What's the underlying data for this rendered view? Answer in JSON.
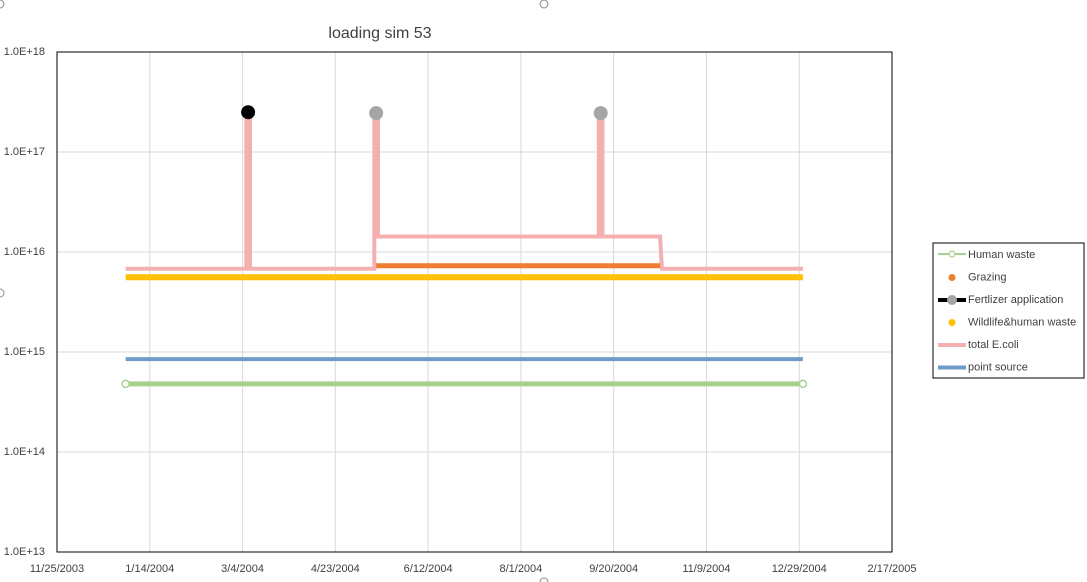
{
  "chart_data": {
    "type": "line",
    "title": "loading sim 53",
    "y_scale": "log",
    "grid": true,
    "legend_position": "right",
    "ylim": [
      "1.0E+13",
      "1.0E+18"
    ],
    "y_ticks": [
      {
        "value": 10000000000000.0,
        "label": "1.0E+13"
      },
      {
        "value": 100000000000000.0,
        "label": "1.0E+14"
      },
      {
        "value": 1000000000000000.0,
        "label": "1.0E+15"
      },
      {
        "value": 1e+16,
        "label": "1.0E+16"
      },
      {
        "value": 1e+17,
        "label": "1.0E+17"
      },
      {
        "value": 1e+18,
        "label": "1.0E+18"
      }
    ],
    "xlim": [
      "2003-11-25",
      "2005-02-17"
    ],
    "x_ticks": [
      {
        "date": "2003-11-25",
        "label": "11/25/2003"
      },
      {
        "date": "2004-01-14",
        "label": "1/14/2004"
      },
      {
        "date": "2004-03-04",
        "label": "3/4/2004"
      },
      {
        "date": "2004-04-23",
        "label": "4/23/2004"
      },
      {
        "date": "2004-06-12",
        "label": "6/12/2004"
      },
      {
        "date": "2004-08-01",
        "label": "8/1/2004"
      },
      {
        "date": "2004-09-20",
        "label": "9/20/2004"
      },
      {
        "date": "2004-11-09",
        "label": "11/9/2004"
      },
      {
        "date": "2004-12-29",
        "label": "12/29/2004"
      },
      {
        "date": "2005-02-17",
        "label": "2/17/2005"
      }
    ],
    "series": [
      {
        "name": "Human waste",
        "kind": "line-marker",
        "color": "#a9d18e",
        "points": [
          [
            "2004-01-01",
            480000000000000.0
          ],
          [
            "2004-12-31",
            480000000000000.0
          ]
        ]
      },
      {
        "name": "Grazing",
        "kind": "segment",
        "color": "#ed7d31",
        "points": [
          [
            "2004-05-15",
            7300000000000000.0
          ],
          [
            "2004-10-15",
            7300000000000000.0
          ]
        ]
      },
      {
        "name": "Fertlizer application",
        "kind": "markers",
        "color": "#a5a5a5",
        "points": [
          [
            "2004-03-07",
            2.5e+17
          ],
          [
            "2004-05-15",
            2.45e+17
          ],
          [
            "2004-09-13",
            2.45e+17
          ]
        ],
        "marker_colors": [
          "#000000",
          "#a5a5a5",
          "#a5a5a5"
        ]
      },
      {
        "name": "Wildlife&human waste",
        "kind": "line",
        "color": "#ffc000",
        "points": [
          [
            "2004-01-01",
            5600000000000000.0
          ],
          [
            "2004-12-31",
            5600000000000000.0
          ]
        ]
      },
      {
        "name": "total E.coli",
        "kind": "line",
        "color": "#f4b0b0",
        "points": [
          [
            "2004-01-01",
            6800000000000000.0
          ],
          [
            "2004-03-06",
            6800000000000000.0
          ],
          [
            "2004-03-06",
            2.4e+17
          ],
          [
            "2004-03-08",
            2.4e+17
          ],
          [
            "2004-03-08",
            6800000000000000.0
          ],
          [
            "2004-05-14",
            6800000000000000.0
          ],
          [
            "2004-05-14",
            2.4e+17
          ],
          [
            "2004-05-16",
            2.4e+17
          ],
          [
            "2004-05-16",
            1.43e+16
          ],
          [
            "2004-09-12",
            1.43e+16
          ],
          [
            "2004-09-12",
            2.4e+17
          ],
          [
            "2004-09-14",
            2.4e+17
          ],
          [
            "2004-09-14",
            1.43e+16
          ],
          [
            "2004-10-15",
            1.43e+16
          ],
          [
            "2004-10-16",
            6800000000000000.0
          ],
          [
            "2004-12-31",
            6800000000000000.0
          ]
        ]
      },
      {
        "name": "point source",
        "kind": "line",
        "color": "#6f9bc6",
        "points": [
          [
            "2004-01-01",
            850000000000000.0
          ],
          [
            "2004-12-31",
            850000000000000.0
          ]
        ]
      }
    ]
  }
}
